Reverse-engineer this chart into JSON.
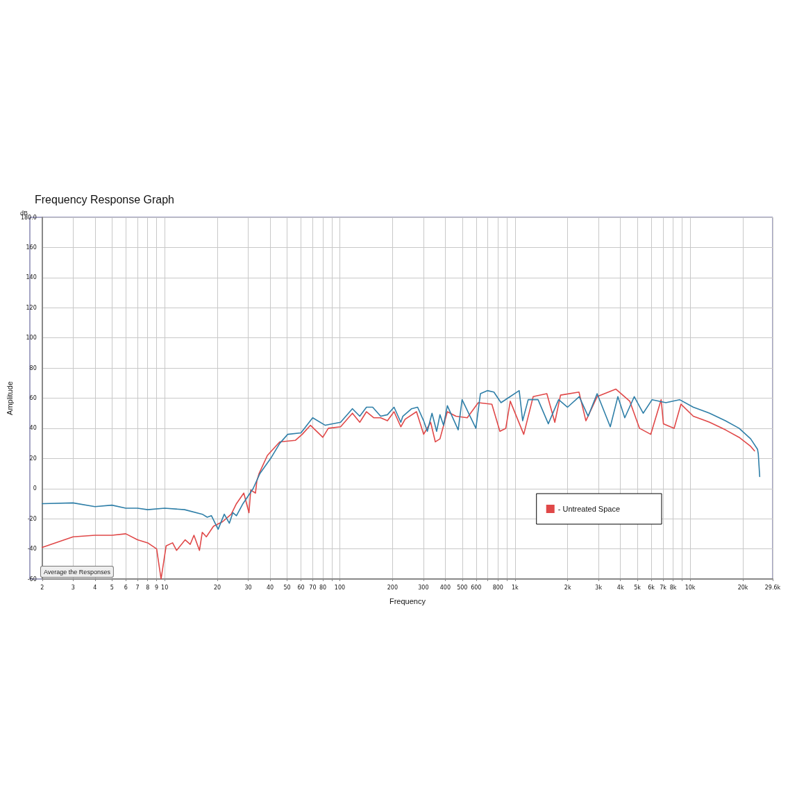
{
  "chart_data": {
    "type": "line",
    "title": "Frequency Response Graph",
    "xlabel": "Frequency",
    "ylabel": "Amplitude",
    "annotations": [
      "dB",
      "Average the Responses"
    ],
    "log": "x",
    "grid": true,
    "legend": "bottom right",
    "marker": "none",
    "line_style": "solid",
    "xlim": [
      2,
      29600
    ],
    "xticks": [
      2,
      3,
      4,
      5,
      6,
      7,
      8,
      9,
      10,
      20,
      30,
      40,
      50,
      60,
      70,
      80,
      {
        "value": 90,
        "label": null
      },
      100,
      200,
      300,
      400,
      500,
      600,
      {
        "value": 700,
        "label": null
      },
      800,
      {
        "value": 900,
        "label": null
      },
      {
        "value": 1000,
        "label": "1k"
      },
      {
        "value": 2000,
        "label": "2k"
      },
      {
        "value": 3000,
        "label": "3k"
      },
      {
        "value": 4000,
        "label": "4k"
      },
      {
        "value": 5000,
        "label": "5k"
      },
      {
        "value": 6000,
        "label": "6k"
      },
      {
        "value": 7000,
        "label": "7k"
      },
      {
        "value": 8000,
        "label": "8k"
      },
      {
        "value": 9000,
        "label": null
      },
      {
        "value": 10000,
        "label": "10k"
      },
      {
        "value": 20000,
        "label": "20k"
      },
      {
        "value": 29600,
        "label": "29.6k"
      }
    ],
    "ylim": [
      -60,
      180
    ],
    "yticks": [
      -60,
      -40,
      -20,
      0,
      20,
      40,
      60,
      80,
      100,
      120,
      140,
      160,
      {
        "value": 180,
        "label": "180.0"
      }
    ],
    "series": [
      {
        "name": "- Untreated Space",
        "color": "#e04848",
        "x": [
          2,
          3,
          4,
          5,
          6,
          7,
          8,
          9,
          9.54,
          10.2,
          11.1,
          11.7,
          13.1,
          14,
          14.7,
          15.8,
          16.4,
          17.3,
          19,
          21.4,
          24,
          25.7,
          28.3,
          30.3,
          31,
          33,
          33.6,
          34.6,
          38.6,
          45.4,
          55.7,
          61,
          68,
          80,
          86,
          101,
          118,
          130,
          142,
          156,
          171,
          187,
          204,
          223,
          236,
          274,
          301,
          330,
          351,
          373,
          411,
          460,
          534,
          617,
          738,
          820,
          886,
          940,
          1122,
          1270,
          1520,
          1688,
          1820,
          2320,
          2540,
          2944,
          3762,
          4520,
          5140,
          5960,
          6830,
          7040,
          8100,
          8860,
          10420,
          12920,
          15890,
          19030,
          22160,
          23320
        ],
        "values": [
          -39,
          -32,
          -31,
          -31,
          -30,
          -34,
          -36,
          -40,
          -60,
          -38,
          -36,
          -41,
          -34,
          -37,
          -31,
          -41,
          -29,
          -32,
          -25,
          -22,
          -17,
          -10,
          -3,
          -16,
          -1,
          -3,
          5,
          10,
          22,
          31,
          32,
          36,
          42,
          34,
          40,
          41,
          50,
          44,
          51,
          47,
          47,
          45,
          51,
          41,
          46,
          51,
          36,
          44,
          31,
          33,
          51,
          48,
          47,
          57,
          56,
          38,
          40,
          58,
          36,
          61,
          63,
          44,
          62,
          64,
          45,
          61,
          66,
          58,
          40,
          36,
          59,
          43,
          40,
          56,
          48,
          44,
          39,
          34,
          28,
          25
        ]
      },
      {
        "color": "#2f7fa8",
        "x": [
          2,
          3,
          4,
          5,
          6,
          7,
          8,
          10,
          13,
          16.4,
          17.5,
          18.5,
          20.2,
          21.9,
          23.4,
          24.5,
          25.7,
          28,
          32,
          35,
          40.3,
          45.4,
          50.4,
          60,
          70,
          82.6,
          101,
          118,
          130,
          142,
          154,
          171,
          187,
          204,
          223,
          229,
          257,
          278,
          301,
          316,
          336,
          357,
          373,
          391,
          411,
          474,
          499,
          598,
          635,
          695,
          758,
          832,
          910,
          1057,
          1106,
          1190,
          1354,
          1550,
          1775,
          1996,
          2327,
          2616,
          2944,
          3500,
          3866,
          4234,
          4797,
          5393,
          6065,
          7265,
          8700,
          10420,
          12920,
          15890,
          19030,
          22160,
          24260,
          24490,
          24950
        ],
        "values": [
          -10,
          -9.5,
          -12,
          -11,
          -13,
          -13,
          -14,
          -13,
          -14,
          -17,
          -19,
          -18,
          -27,
          -17,
          -23,
          -16,
          -18,
          -10,
          0,
          10,
          20,
          30,
          36,
          37,
          47,
          42,
          44,
          53,
          48,
          54,
          54,
          48,
          49,
          54,
          44,
          48,
          53,
          54,
          45,
          38,
          50,
          38,
          49,
          42,
          55,
          39,
          59,
          40,
          63,
          65,
          64,
          57,
          60,
          65,
          45,
          59,
          59,
          43,
          59,
          54,
          61,
          48,
          63,
          41,
          61,
          47,
          61,
          50,
          59,
          57,
          59,
          54,
          50,
          45,
          40,
          33,
          26,
          23,
          8
        ]
      }
    ]
  }
}
